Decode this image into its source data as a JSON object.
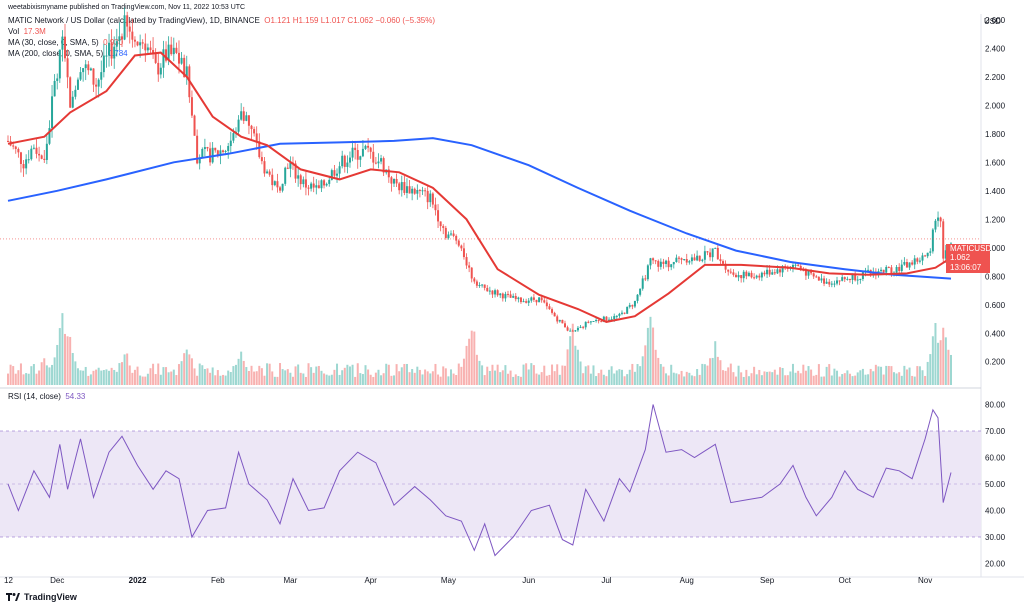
{
  "header": {
    "attribution": "weetabixismyname published on TradingView.com, Nov 11, 2022 10:53 UTC",
    "symbol_title": "MATIC Network / US Dollar (calculated by TradingView), 1D, BINANCE",
    "ohlc": "O1.121  H1.159  L1.017  C1.062  −0.060 (−5.35%)",
    "vol_label": "Vol",
    "vol_value": "17.3M",
    "ma30_label": "MA (30, close, 0, SMA, 5)",
    "ma30_value": "0.930",
    "ma200_label": "MA (200, close, 0, SMA, 5)",
    "ma200_value": "0.784",
    "rsi_label": "RSI (14, close)",
    "rsi_value": "54.33"
  },
  "price_tag": {
    "symbol": "MATICUSD",
    "price": "1.062",
    "countdown": "13:06:07"
  },
  "footer": {
    "brand": "TradingView"
  },
  "colors": {
    "up": "#26a69a",
    "down": "#ef5350",
    "ma30": "#e53935",
    "ma200": "#2962ff",
    "rsi": "#7e57c2",
    "rsi_band": "#ede7f6"
  },
  "chart_data": [
    {
      "type": "candlestick",
      "currency_label": "USD",
      "y_ticks": [
        "0.200",
        "0.400",
        "0.600",
        "0.800",
        "1.000",
        "1.200",
        "1.400",
        "1.600",
        "1.800",
        "2.000",
        "2.200",
        "2.400",
        "2.600"
      ],
      "x_ticks": [
        "12",
        "Dec",
        "2022",
        "Feb",
        "Mar",
        "Apr",
        "May",
        "Jun",
        "Jul",
        "Aug",
        "Sep",
        "Oct",
        "Nov"
      ],
      "ylim": [
        0.1,
        2.65
      ],
      "last_price": 1.062,
      "close_path": [
        [
          "2021-11-12",
          1.75
        ],
        [
          "2021-11-18",
          1.6
        ],
        [
          "2021-11-22",
          1.72
        ],
        [
          "2021-11-26",
          1.6
        ],
        [
          "2021-11-30",
          2.15
        ],
        [
          "2021-12-03",
          2.4
        ],
        [
          "2021-12-06",
          2.05
        ],
        [
          "2021-12-10",
          2.3
        ],
        [
          "2021-12-16",
          2.15
        ],
        [
          "2021-12-22",
          2.4
        ],
        [
          "2021-12-27",
          2.55
        ],
        [
          "2021-12-31",
          2.45
        ],
        [
          "2022-01-04",
          2.45
        ],
        [
          "2022-01-08",
          2.25
        ],
        [
          "2022-01-12",
          2.35
        ],
        [
          "2022-01-16",
          2.35
        ],
        [
          "2022-01-20",
          2.2
        ],
        [
          "2022-01-24",
          1.65
        ],
        [
          "2022-01-30",
          1.65
        ],
        [
          "2022-02-04",
          1.7
        ],
        [
          "2022-02-08",
          1.8
        ],
        [
          "2022-02-10",
          2.0
        ],
        [
          "2022-02-14",
          1.8
        ],
        [
          "2022-02-18",
          1.6
        ],
        [
          "2022-02-24",
          1.4
        ],
        [
          "2022-02-28",
          1.6
        ],
        [
          "2022-03-06",
          1.45
        ],
        [
          "2022-03-12",
          1.4
        ],
        [
          "2022-03-18",
          1.55
        ],
        [
          "2022-03-24",
          1.65
        ],
        [
          "2022-03-30",
          1.68
        ],
        [
          "2022-04-05",
          1.6
        ],
        [
          "2022-04-10",
          1.45
        ],
        [
          "2022-04-18",
          1.4
        ],
        [
          "2022-04-24",
          1.35
        ],
        [
          "2022-04-30",
          1.1
        ],
        [
          "2022-05-05",
          1.05
        ],
        [
          "2022-05-10",
          0.8
        ],
        [
          "2022-05-14",
          0.72
        ],
        [
          "2022-05-20",
          0.68
        ],
        [
          "2022-05-28",
          0.63
        ],
        [
          "2022-06-05",
          0.64
        ],
        [
          "2022-06-12",
          0.5
        ],
        [
          "2022-06-18",
          0.4
        ],
        [
          "2022-06-24",
          0.48
        ],
        [
          "2022-06-30",
          0.5
        ],
        [
          "2022-07-06",
          0.52
        ],
        [
          "2022-07-12",
          0.62
        ],
        [
          "2022-07-18",
          0.9
        ],
        [
          "2022-07-24",
          0.88
        ],
        [
          "2022-07-30",
          0.93
        ],
        [
          "2022-08-05",
          0.92
        ],
        [
          "2022-08-12",
          0.98
        ],
        [
          "2022-08-18",
          0.82
        ],
        [
          "2022-08-26",
          0.8
        ],
        [
          "2022-09-06",
          0.85
        ],
        [
          "2022-09-12",
          0.88
        ],
        [
          "2022-09-18",
          0.8
        ],
        [
          "2022-09-24",
          0.76
        ],
        [
          "2022-10-01",
          0.78
        ],
        [
          "2022-10-10",
          0.82
        ],
        [
          "2022-10-16",
          0.84
        ],
        [
          "2022-10-22",
          0.86
        ],
        [
          "2022-10-30",
          0.92
        ],
        [
          "2022-11-03",
          0.95
        ],
        [
          "2022-11-05",
          1.23
        ],
        [
          "2022-11-07",
          1.15
        ],
        [
          "2022-11-08",
          0.9
        ],
        [
          "2022-11-11",
          1.062
        ]
      ],
      "ma30": [
        [
          "2021-11-12",
          1.73
        ],
        [
          "2021-11-26",
          1.78
        ],
        [
          "2021-12-06",
          1.95
        ],
        [
          "2021-12-20",
          2.1
        ],
        [
          "2021-12-31",
          2.35
        ],
        [
          "2022-01-10",
          2.37
        ],
        [
          "2022-01-20",
          2.2
        ],
        [
          "2022-01-30",
          1.92
        ],
        [
          "2022-02-10",
          1.78
        ],
        [
          "2022-02-20",
          1.72
        ],
        [
          "2022-03-05",
          1.55
        ],
        [
          "2022-03-20",
          1.48
        ],
        [
          "2022-04-01",
          1.55
        ],
        [
          "2022-04-12",
          1.53
        ],
        [
          "2022-04-25",
          1.42
        ],
        [
          "2022-05-08",
          1.2
        ],
        [
          "2022-05-20",
          0.85
        ],
        [
          "2022-06-05",
          0.67
        ],
        [
          "2022-06-20",
          0.57
        ],
        [
          "2022-07-01",
          0.48
        ],
        [
          "2022-07-12",
          0.52
        ],
        [
          "2022-07-25",
          0.68
        ],
        [
          "2022-08-08",
          0.88
        ],
        [
          "2022-08-22",
          0.88
        ],
        [
          "2022-09-10",
          0.86
        ],
        [
          "2022-09-25",
          0.82
        ],
        [
          "2022-10-10",
          0.81
        ],
        [
          "2022-10-25",
          0.82
        ],
        [
          "2022-11-05",
          0.86
        ],
        [
          "2022-11-11",
          0.93
        ]
      ],
      "ma200": [
        [
          "2021-11-12",
          1.33
        ],
        [
          "2021-12-01",
          1.4
        ],
        [
          "2021-12-20",
          1.48
        ],
        [
          "2022-01-15",
          1.6
        ],
        [
          "2022-02-05",
          1.66
        ],
        [
          "2022-02-25",
          1.73
        ],
        [
          "2022-03-20",
          1.74
        ],
        [
          "2022-04-10",
          1.75
        ],
        [
          "2022-04-25",
          1.77
        ],
        [
          "2022-05-10",
          1.72
        ],
        [
          "2022-06-01",
          1.58
        ],
        [
          "2022-06-20",
          1.42
        ],
        [
          "2022-07-10",
          1.26
        ],
        [
          "2022-08-01",
          1.1
        ],
        [
          "2022-08-20",
          0.98
        ],
        [
          "2022-09-10",
          0.9
        ],
        [
          "2022-10-01",
          0.85
        ],
        [
          "2022-10-20",
          0.81
        ],
        [
          "2022-11-11",
          0.784
        ]
      ],
      "volume_bars_note": "",
      "volume_spikes": [
        [
          "2021-11-26",
          0.35
        ],
        [
          "2021-12-03",
          0.95
        ],
        [
          "2021-12-05",
          0.7
        ],
        [
          "2021-12-27",
          0.45
        ],
        [
          "2022-01-20",
          0.55
        ],
        [
          "2022-02-10",
          0.4
        ],
        [
          "2022-05-10",
          0.75
        ],
        [
          "2022-06-18",
          0.7
        ],
        [
          "2022-07-18",
          0.85
        ],
        [
          "2022-08-12",
          0.5
        ],
        [
          "2022-11-05",
          0.7
        ],
        [
          "2022-11-08",
          0.85
        ]
      ]
    },
    {
      "type": "line",
      "name": "RSI (14, close)",
      "y_ticks": [
        "20.00",
        "30.00",
        "40.00",
        "50.00",
        "60.00",
        "70.00",
        "80.00"
      ],
      "ylim": [
        17,
        83
      ],
      "band": [
        30,
        70
      ],
      "midline": 50,
      "series": [
        [
          "2021-11-12",
          50
        ],
        [
          "2021-11-16",
          40
        ],
        [
          "2021-11-22",
          55
        ],
        [
          "2021-11-28",
          45
        ],
        [
          "2021-12-02",
          65
        ],
        [
          "2021-12-05",
          48
        ],
        [
          "2021-12-10",
          67
        ],
        [
          "2021-12-15",
          45
        ],
        [
          "2021-12-21",
          62
        ],
        [
          "2021-12-26",
          68
        ],
        [
          "2022-01-01",
          57
        ],
        [
          "2022-01-07",
          48
        ],
        [
          "2022-01-12",
          55
        ],
        [
          "2022-01-17",
          52
        ],
        [
          "2022-01-22",
          30
        ],
        [
          "2022-01-28",
          40
        ],
        [
          "2022-02-04",
          41
        ],
        [
          "2022-02-09",
          62
        ],
        [
          "2022-02-13",
          50
        ],
        [
          "2022-02-20",
          44
        ],
        [
          "2022-02-25",
          35
        ],
        [
          "2022-03-02",
          52
        ],
        [
          "2022-03-08",
          40
        ],
        [
          "2022-03-14",
          41
        ],
        [
          "2022-03-20",
          55
        ],
        [
          "2022-03-27",
          62
        ],
        [
          "2022-04-03",
          58
        ],
        [
          "2022-04-10",
          42
        ],
        [
          "2022-04-18",
          49
        ],
        [
          "2022-04-24",
          44
        ],
        [
          "2022-04-30",
          38
        ],
        [
          "2022-05-06",
          36
        ],
        [
          "2022-05-11",
          25
        ],
        [
          "2022-05-15",
          35
        ],
        [
          "2022-05-19",
          23
        ],
        [
          "2022-05-26",
          30
        ],
        [
          "2022-06-02",
          40
        ],
        [
          "2022-06-09",
          42
        ],
        [
          "2022-06-14",
          29
        ],
        [
          "2022-06-18",
          27
        ],
        [
          "2022-06-23",
          48
        ],
        [
          "2022-06-30",
          36
        ],
        [
          "2022-07-06",
          52
        ],
        [
          "2022-07-10",
          47
        ],
        [
          "2022-07-16",
          63
        ],
        [
          "2022-07-19",
          80
        ],
        [
          "2022-07-24",
          62
        ],
        [
          "2022-07-30",
          63
        ],
        [
          "2022-08-04",
          60
        ],
        [
          "2022-08-12",
          65
        ],
        [
          "2022-08-18",
          43
        ],
        [
          "2022-08-24",
          44
        ],
        [
          "2022-08-30",
          45
        ],
        [
          "2022-09-06",
          50
        ],
        [
          "2022-09-11",
          57
        ],
        [
          "2022-09-16",
          45
        ],
        [
          "2022-09-20",
          38
        ],
        [
          "2022-09-26",
          45
        ],
        [
          "2022-10-01",
          55
        ],
        [
          "2022-10-06",
          48
        ],
        [
          "2022-10-12",
          45
        ],
        [
          "2022-10-17",
          56
        ],
        [
          "2022-10-22",
          55
        ],
        [
          "2022-10-27",
          52
        ],
        [
          "2022-11-01",
          67
        ],
        [
          "2022-11-04",
          78
        ],
        [
          "2022-11-06",
          75
        ],
        [
          "2022-11-08",
          43
        ],
        [
          "2022-11-11",
          54.33
        ]
      ]
    }
  ]
}
